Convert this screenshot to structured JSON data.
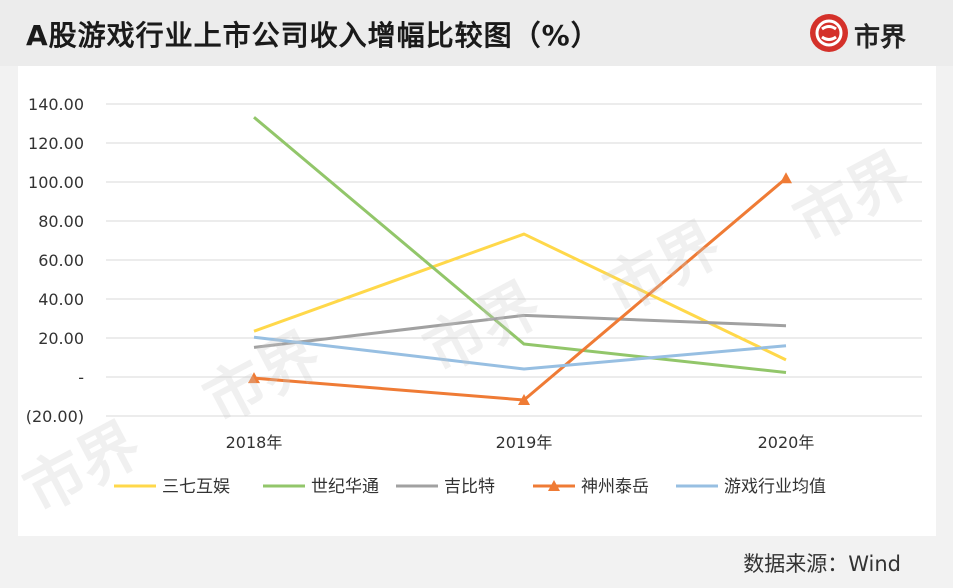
{
  "header": {
    "title": "A股游戏行业上市公司收入增幅比较图（%）"
  },
  "logo": {
    "text": "市界",
    "color": "#d4312a",
    "icon": "shijie-logo-icon"
  },
  "watermark": {
    "text": "市界"
  },
  "footer": {
    "source": "数据来源：Wind"
  },
  "chart_data": {
    "type": "line",
    "title": "",
    "xlabel": "",
    "ylabel": "",
    "categories": [
      "2018年",
      "2019年",
      "2020年"
    ],
    "ylim": [
      -20,
      140
    ],
    "yticks": [
      {
        "value": 140,
        "label": "140.00"
      },
      {
        "value": 120,
        "label": "120.00"
      },
      {
        "value": 100,
        "label": "100.00"
      },
      {
        "value": 80,
        "label": "80.00"
      },
      {
        "value": 60,
        "label": "60.00"
      },
      {
        "value": 40,
        "label": "40.00"
      },
      {
        "value": 20,
        "label": "20.00"
      },
      {
        "value": 0,
        "label": "-"
      },
      {
        "value": -20,
        "label": "(20.00)"
      }
    ],
    "grid": true,
    "legend_position": "bottom",
    "series": [
      {
        "name": "三七互娱",
        "values": [
          23.5,
          73.3,
          8.8
        ],
        "color": "#ffd84a",
        "marker": "none"
      },
      {
        "name": "世纪华通",
        "values": [
          133.2,
          16.9,
          2.3
        ],
        "color": "#92c66a",
        "marker": "none"
      },
      {
        "name": "吉比特",
        "values": [
          15.2,
          31.6,
          26.3
        ],
        "color": "#a1a1a1",
        "marker": "none"
      },
      {
        "name": "神州泰岳",
        "values": [
          -0.6,
          -11.8,
          101.9
        ],
        "color": "#ef7b35",
        "marker": "triangle"
      },
      {
        "name": "游戏行业均值",
        "values": [
          20.4,
          4.1,
          16.0
        ],
        "color": "#97bfe2",
        "marker": "none"
      }
    ]
  }
}
